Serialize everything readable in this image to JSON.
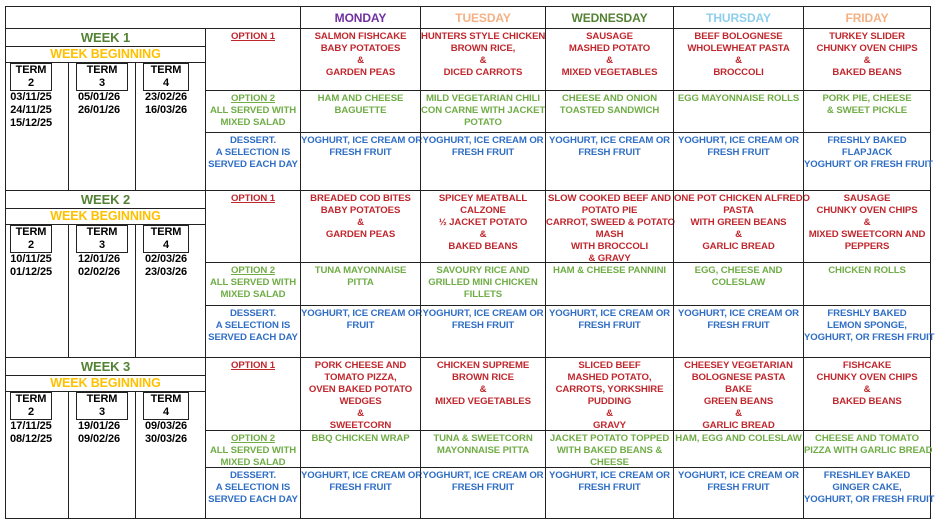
{
  "days": [
    {
      "label": "MONDAY",
      "color": "#7030a0"
    },
    {
      "label": "TUESDAY",
      "color": "#f4b183"
    },
    {
      "label": "WEDNESDAY",
      "color": "#548235"
    },
    {
      "label": "THURSDAY",
      "color": "#8ecfee"
    },
    {
      "label": "FRIDAY",
      "color": "#f4b183"
    }
  ],
  "week_beginning_label": "WEEK BEGINNING",
  "option1_label": "OPTION 1",
  "option2_label": "OPTION 2",
  "option2_note": [
    "ALL SERVED WITH",
    "MIXED SALAD"
  ],
  "dessert_label": [
    "DESSERT.",
    "A SELECTION IS",
    "SERVED EACH DAY"
  ],
  "weeks": [
    {
      "title": "WEEK 1",
      "terms": [
        {
          "label": [
            "TERM",
            "2"
          ],
          "dates": [
            "03/11/25",
            "24/11/25",
            "15/12/25"
          ]
        },
        {
          "label": [
            "TERM",
            "3"
          ],
          "dates": [
            "05/01/26",
            "26/01/26"
          ]
        },
        {
          "label": [
            "TERM",
            "4"
          ],
          "dates": [
            "23/02/26",
            "16/03/26"
          ]
        }
      ],
      "option1": [
        [
          "SALMON FISHCAKE",
          "BABY POTATOES",
          "&",
          "GARDEN PEAS"
        ],
        [
          "HUNTERS STYLE CHICKEN",
          "BROWN RICE,",
          "&",
          "DICED CARROTS"
        ],
        [
          "SAUSAGE",
          "MASHED POTATO",
          "&",
          "MIXED VEGETABLES"
        ],
        [
          "BEEF BOLOGNESE",
          "WHOLEWHEAT PASTA",
          "&",
          "BROCCOLI"
        ],
        [
          "TURKEY SLIDER",
          "CHUNKY OVEN CHIPS",
          "&",
          "BAKED BEANS"
        ]
      ],
      "option2": [
        [
          "HAM AND CHEESE",
          "BAGUETTE"
        ],
        [
          "MILD VEGETARIAN CHILI",
          "CON CARNE WITH JACKET",
          "POTATO"
        ],
        [
          "CHEESE AND ONION",
          "TOASTED SANDWICH"
        ],
        [
          "EGG MAYONNAISE ROLLS"
        ],
        [
          "PORK PIE, CHEESE",
          "& SWEET PICKLE"
        ]
      ],
      "dessert": [
        [
          "YOGHURT, ICE CREAM OR",
          "FRESH FRUIT"
        ],
        [
          "YOGHURT, ICE CREAM OR",
          "FRESH FRUIT"
        ],
        [
          "YOGHURT, ICE CREAM OR",
          "FRESH FRUIT"
        ],
        [
          "YOGHURT, ICE CREAM OR",
          "FRESH FRUIT"
        ],
        [
          "FRESHLY BAKED",
          "FLAPJACK",
          "YOGHURT OR FRESH FRUIT"
        ]
      ]
    },
    {
      "title": "WEEK 2",
      "terms": [
        {
          "label": [
            "TERM",
            "2"
          ],
          "dates": [
            "10/11/25",
            "01/12/25"
          ]
        },
        {
          "label": [
            "TERM",
            "3"
          ],
          "dates": [
            "12/01/26",
            "02/02/26"
          ]
        },
        {
          "label": [
            "TERM",
            "4"
          ],
          "dates": [
            "02/03/26",
            "23/03/26"
          ]
        }
      ],
      "option1": [
        [
          "BREADED COD BITES",
          "BABY POTATOES",
          "&",
          "GARDEN PEAS"
        ],
        [
          "SPICEY MEATBALL",
          "CALZONE",
          "½ JACKET POTATO",
          "&",
          "BAKED BEANS"
        ],
        [
          "SLOW COOKED BEEF AND",
          "POTATO PIE",
          "CARROT, SWEED & POTATO",
          "MASH",
          "WITH BROCCOLI",
          "& GRAVY"
        ],
        [
          "ONE POT CHICKEN ALFREDO",
          "PASTA",
          "WITH GREEN BEANS",
          "&",
          "GARLIC BREAD"
        ],
        [
          "SAUSAGE",
          "CHUNKY OVEN CHIPS",
          "&",
          "MIXED SWEETCORN AND",
          "PEPPERS"
        ]
      ],
      "option2": [
        [
          "TUNA MAYONNAISE",
          "PITTA"
        ],
        [
          "SAVOURY RICE AND",
          "GRILLED MINI CHICKEN",
          "FILLETS"
        ],
        [
          "HAM & CHEESE PANNINI"
        ],
        [
          "EGG, CHEESE AND",
          "COLESLAW"
        ],
        [
          "CHICKEN ROLLS"
        ]
      ],
      "dessert": [
        [
          "YOGHURT, ICE CREAM OR",
          "FRUIT"
        ],
        [
          "YOGHURT, ICE CREAM OR",
          "FRESH FRUIT"
        ],
        [
          "YOGHURT, ICE CREAM OR",
          "FRESH FRUIT"
        ],
        [
          "YOGHURT, ICE CREAM OR",
          "FRESH FRUIT"
        ],
        [
          "FRESHLY BAKED",
          "LEMON SPONGE,",
          "YOGHURT, OR FRESH FRUIT"
        ]
      ]
    },
    {
      "title": "WEEK 3",
      "terms": [
        {
          "label": [
            "TERM",
            "2"
          ],
          "dates": [
            "17/11/25",
            "08/12/25"
          ]
        },
        {
          "label": [
            "TERM",
            "3"
          ],
          "dates": [
            "19/01/26",
            "09/02/26"
          ]
        },
        {
          "label": [
            "TERM",
            "4"
          ],
          "dates": [
            "09/03/26",
            "30/03/26"
          ]
        }
      ],
      "option1": [
        [
          "PORK CHEESE AND",
          "TOMATO PIZZA,",
          "OVEN BAKED POTATO",
          "WEDGES",
          "&",
          "SWEETCORN"
        ],
        [
          "CHICKEN SUPREME",
          "BROWN RICE",
          "&",
          "MIXED VEGETABLES"
        ],
        [
          "SLICED BEEF",
          "MASHED POTATO,",
          "CARROTS, YORKSHIRE",
          "PUDDING",
          "&",
          "GRAVY"
        ],
        [
          "CHEESEY VEGETARIAN",
          "BOLOGNESE PASTA",
          "BAKE",
          "GREEN BEANS",
          "&",
          "GARLIC BREAD"
        ],
        [
          "FISHCAKE",
          "CHUNKY OVEN CHIPS",
          "&",
          "BAKED BEANS"
        ]
      ],
      "option2": [
        [
          "BBQ CHICKEN WRAP"
        ],
        [
          "TUNA & SWEETCORN",
          "MAYONNAISE PITTA"
        ],
        [
          "JACKET POTATO TOPPED",
          "WITH BAKED BEANS &",
          "CHEESE"
        ],
        [
          "HAM, EGG AND COLESLAW"
        ],
        [
          "CHEESE AND TOMATO",
          "PIZZA WITH GARLIC BREAD"
        ]
      ],
      "dessert": [
        [
          "YOGHURT, ICE CREAM OR",
          "FRESH FRUIT"
        ],
        [
          "YOGHURT, ICE CREAM OR",
          "FRESH FRUIT"
        ],
        [
          "YOGHURT, ICE CREAM OR",
          "FRESH FRUIT"
        ],
        [
          "YOGHURT, ICE CREAM OR",
          "FRESH FRUIT"
        ],
        [
          "FRESHLEY BAKED",
          "GINGER CAKE,",
          "YOGHURT, OR FRESH FRUIT"
        ]
      ]
    }
  ]
}
